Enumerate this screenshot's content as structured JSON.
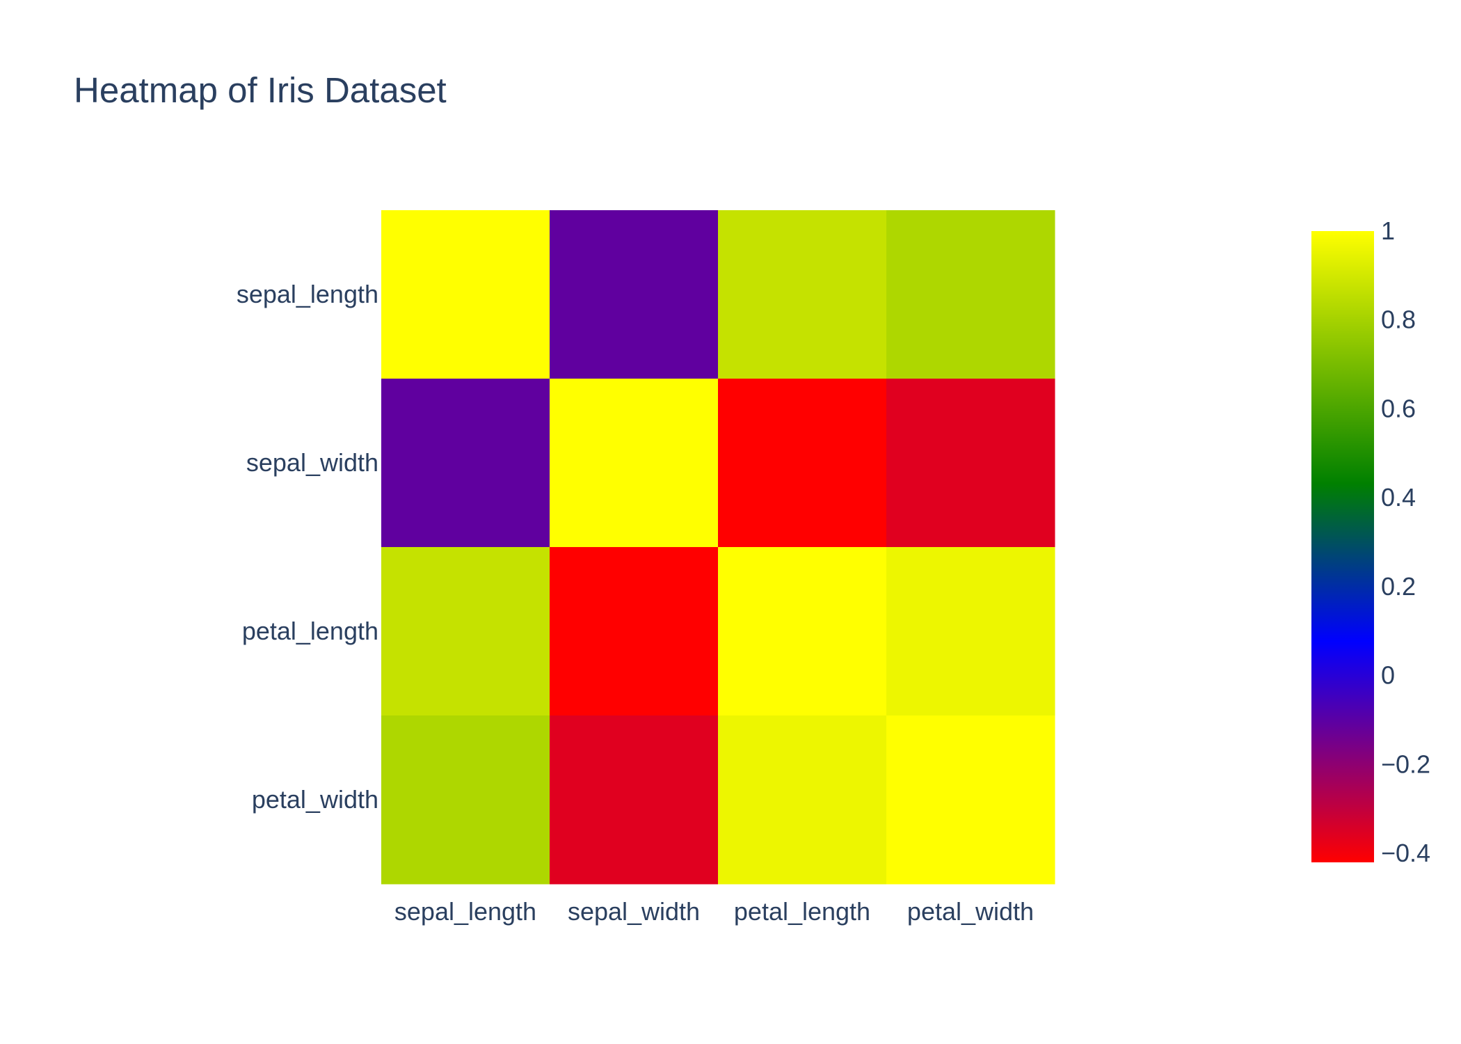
{
  "chart_data": {
    "type": "heatmap",
    "title": "Heatmap of Iris Dataset",
    "x_categories": [
      "sepal_length",
      "sepal_width",
      "petal_length",
      "petal_width"
    ],
    "y_categories": [
      "sepal_length",
      "sepal_width",
      "petal_length",
      "petal_width"
    ],
    "z": [
      [
        1.0,
        -0.11,
        0.87,
        0.82
      ],
      [
        -0.11,
        1.0,
        -0.42,
        -0.36
      ],
      [
        0.87,
        -0.42,
        1.0,
        0.96
      ],
      [
        0.82,
        -0.36,
        0.96,
        1.0
      ]
    ],
    "zrange": [
      -0.42,
      1.0
    ],
    "colorscale": [
      [
        0.0,
        "#ff0000"
      ],
      [
        0.35,
        "#0000ff"
      ],
      [
        0.6,
        "#008000"
      ],
      [
        1.0,
        "#ffff00"
      ]
    ],
    "colorbar": {
      "tick_values": [
        1,
        0.8,
        0.6,
        0.4,
        0.2,
        0,
        -0.2,
        -0.4
      ],
      "tick_labels": [
        "1",
        "0.8",
        "0.6",
        "0.4",
        "0.2",
        "0",
        "−0.2",
        "−0.4"
      ]
    },
    "legend": "none",
    "grid": false
  }
}
